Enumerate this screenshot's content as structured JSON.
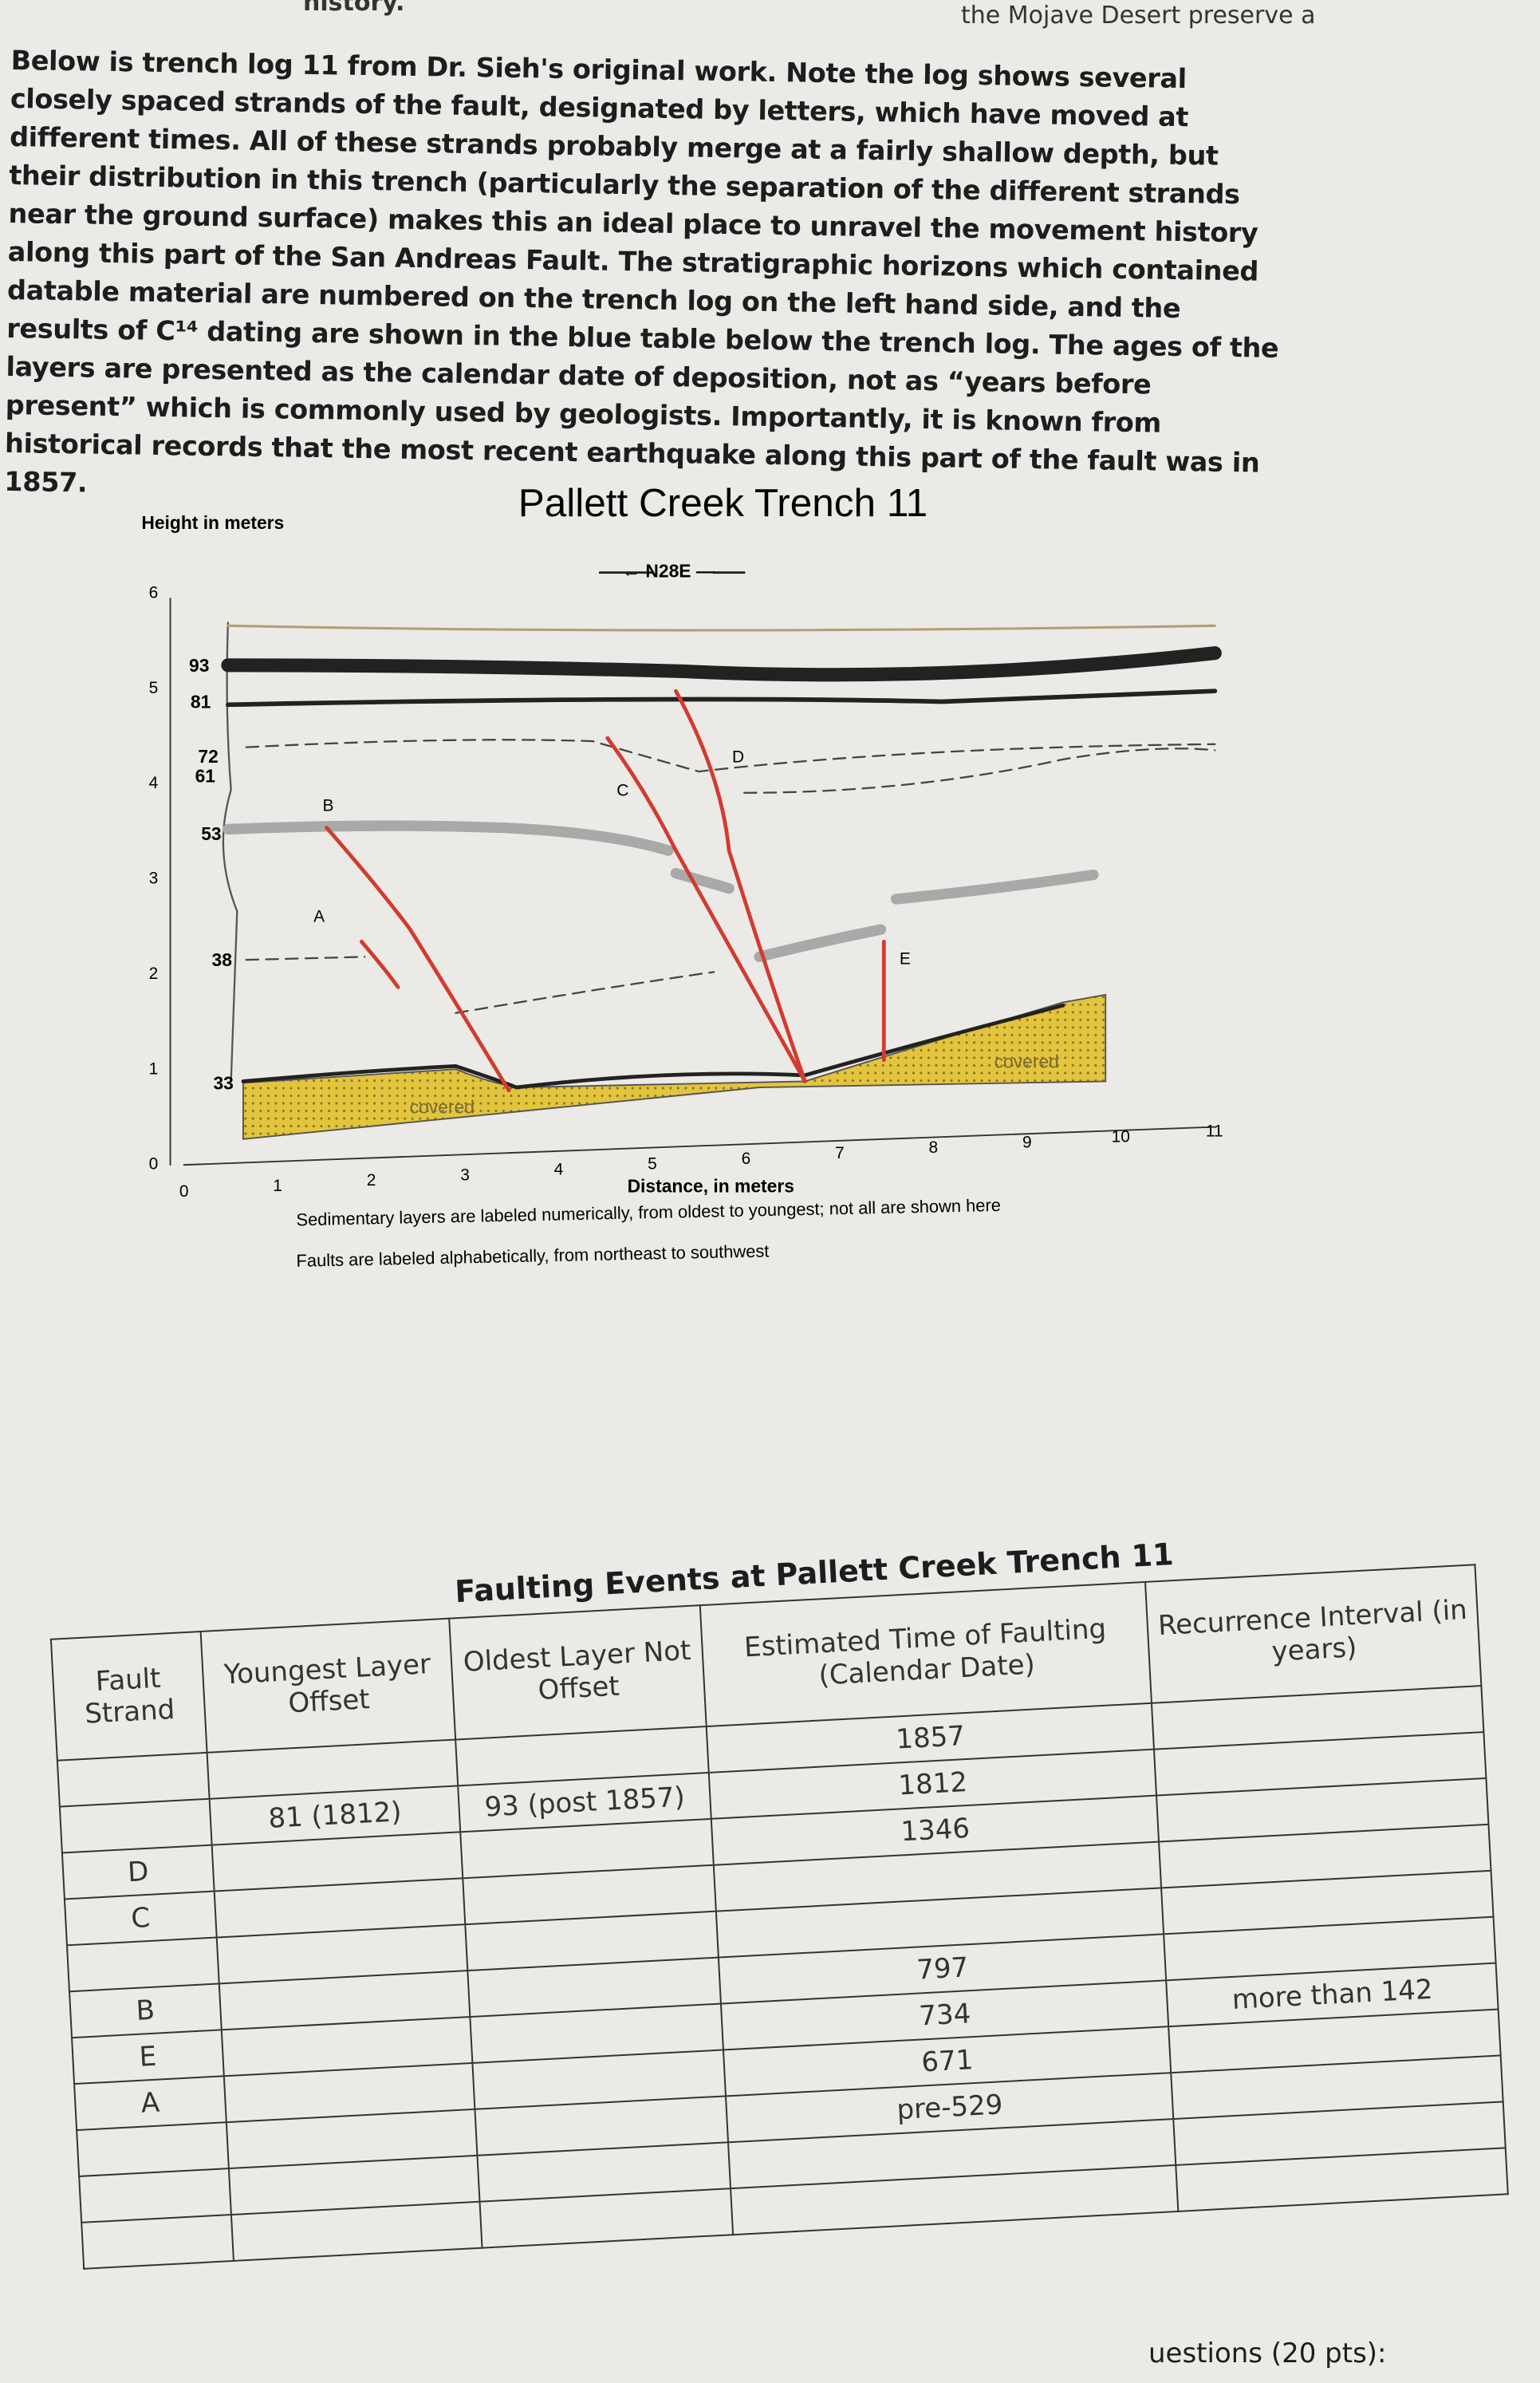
{
  "header": {
    "left_fragment": "history.",
    "right_fragment": "the Mojave Desert preserve a"
  },
  "paragraph": "Below is trench log 11 from Dr. Sieh's original work. Note the log shows several closely spaced strands of the fault, designated by letters, which have moved at different times. All of these strands probably merge at a fairly shallow depth, but their distribution in this trench (particularly the separation of the different strands near the ground surface) makes this an ideal place to unravel the movement history along this part of the San Andreas Fault. The stratigraphic horizons which contained datable material are numbered on the trench log on the left hand side, and the results of C¹⁴ dating are shown in the blue table below the trench log. The ages of the layers are presented as the calendar date of deposition, not as “years before present” which is commonly used by geologists. Importantly, it is known from historical records that the most recent earthquake along this part of the fault was in 1857.",
  "figure": {
    "title": "Pallett Creek Trench 11",
    "y_axis_label": "Height in meters",
    "direction": "← N28E —",
    "y_ticks": [
      "0",
      "1",
      "2",
      "3",
      "4",
      "5",
      "6"
    ],
    "x_ticks": [
      "0",
      "1",
      "2",
      "3",
      "4",
      "5",
      "6",
      "7",
      "8",
      "9",
      "10",
      "11"
    ],
    "x_axis_label": "Distance, in meters",
    "layers": [
      "93",
      "81",
      "72",
      "61",
      "53",
      "38",
      "33"
    ],
    "faults": [
      "A",
      "B",
      "C",
      "D",
      "E"
    ],
    "covered": [
      "covered",
      "covered"
    ],
    "caption": [
      "Sedimentary layers are labeled numerically, from oldest to youngest; not all are shown here",
      "Faults are labeled alphabetically, from northeast to southwest"
    ]
  },
  "table": {
    "title": "Faulting Events at Pallett Creek Trench 11",
    "headers": [
      "Fault Strand",
      "Youngest Layer Offset",
      "Oldest Layer Not Offset",
      "Estimated Time of Faulting (Calendar Date)",
      "Recurrence Interval (in years)"
    ],
    "rows": [
      [
        null,
        null,
        null,
        "1857",
        null
      ],
      [
        null,
        "81 (1812)",
        "93 (post 1857)",
        "1812",
        null
      ],
      [
        "D",
        null,
        null,
        "1346",
        null
      ],
      [
        "C",
        null,
        null,
        null,
        null
      ],
      [
        null,
        null,
        null,
        null,
        null
      ],
      [
        "B",
        null,
        null,
        "797",
        null
      ],
      [
        "E",
        null,
        null,
        "734",
        "more than 142"
      ],
      [
        "A",
        null,
        null,
        "671",
        null
      ],
      [
        null,
        null,
        null,
        "pre-529",
        null
      ],
      [
        null,
        null,
        null,
        null,
        null
      ],
      [
        null,
        null,
        null,
        null,
        null
      ]
    ]
  },
  "footer_fragment": "uestions (20 pts):"
}
